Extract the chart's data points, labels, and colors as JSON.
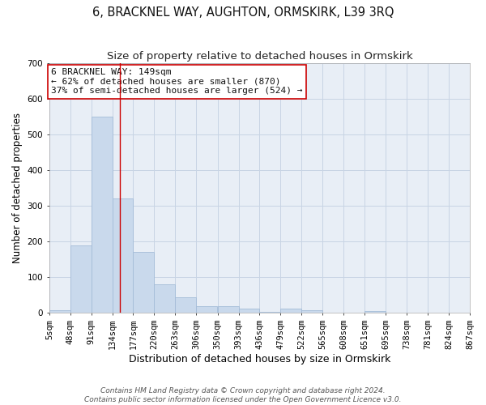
{
  "title": "6, BRACKNEL WAY, AUGHTON, ORMSKIRK, L39 3RQ",
  "subtitle": "Size of property relative to detached houses in Ormskirk",
  "xlabel": "Distribution of detached houses by size in Ormskirk",
  "ylabel": "Number of detached properties",
  "bar_color": "#c9d9ec",
  "bar_edge_color": "#a4bcd8",
  "grid_color": "#c8d4e4",
  "bg_color": "#e8eef6",
  "vline_x": 149,
  "vline_color": "#cc0000",
  "annotation_text": "6 BRACKNEL WAY: 149sqm\n← 62% of detached houses are smaller (870)\n37% of semi-detached houses are larger (524) →",
  "annotation_box_color": "white",
  "annotation_edge_color": "#cc0000",
  "bins": [
    5,
    48,
    91,
    134,
    177,
    220,
    263,
    306,
    350,
    393,
    436,
    479,
    522,
    565,
    608,
    651,
    695,
    738,
    781,
    824,
    867
  ],
  "counts": [
    8,
    190,
    550,
    320,
    170,
    80,
    43,
    18,
    18,
    12,
    2,
    12,
    8,
    0,
    0,
    5,
    0,
    0,
    0,
    0
  ],
  "tick_labels": [
    "5sqm",
    "48sqm",
    "91sqm",
    "134sqm",
    "177sqm",
    "220sqm",
    "263sqm",
    "306sqm",
    "350sqm",
    "393sqm",
    "436sqm",
    "479sqm",
    "522sqm",
    "565sqm",
    "608sqm",
    "651sqm",
    "695sqm",
    "738sqm",
    "781sqm",
    "824sqm",
    "867sqm"
  ],
  "ylim": [
    0,
    700
  ],
  "yticks": [
    0,
    100,
    200,
    300,
    400,
    500,
    600,
    700
  ],
  "footnote": "Contains HM Land Registry data © Crown copyright and database right 2024.\nContains public sector information licensed under the Open Government Licence v3.0.",
  "title_fontsize": 10.5,
  "subtitle_fontsize": 9.5,
  "xlabel_fontsize": 9,
  "ylabel_fontsize": 8.5,
  "tick_fontsize": 7.5,
  "annot_fontsize": 8,
  "footnote_fontsize": 6.5
}
